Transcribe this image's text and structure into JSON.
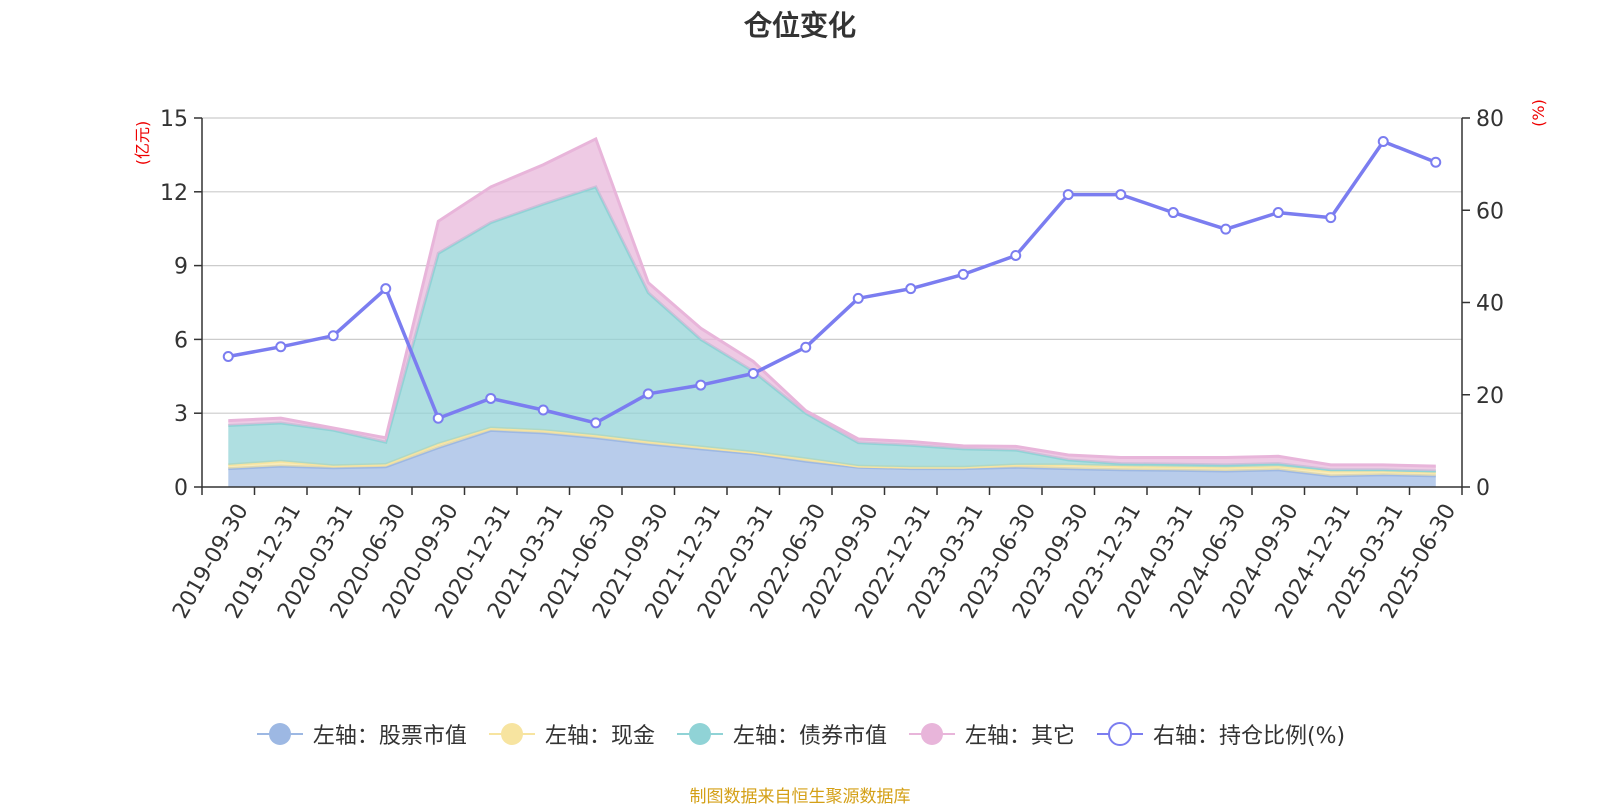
{
  "chart_data": {
    "type": "area",
    "title": "仓位变化",
    "ylabel": "(亿元)",
    "ylabel_right": "(%)",
    "ylim": [
      0,
      15
    ],
    "ylim_right": [
      0,
      80
    ],
    "yticks": [
      "0",
      "3",
      "6",
      "9",
      "12",
      "15"
    ],
    "yticks_right": [
      "0",
      "20",
      "40",
      "60",
      "80"
    ],
    "grid": true,
    "legend_position": "bottom",
    "categories": [
      "2019-09-30",
      "2019-12-31",
      "2020-03-31",
      "2020-06-30",
      "2020-09-30",
      "2020-12-31",
      "2021-03-31",
      "2021-06-30",
      "2021-09-30",
      "2021-12-31",
      "2022-03-31",
      "2022-06-30",
      "2022-09-30",
      "2022-12-31",
      "2023-03-31",
      "2023-06-30",
      "2023-09-30",
      "2023-12-31",
      "2024-03-31",
      "2024-06-30",
      "2024-09-30",
      "2024-12-31",
      "2025-03-31",
      "2025-06-30"
    ],
    "series": [
      {
        "name": "左轴：股票市值",
        "axis": "left",
        "kind": "stacked-area",
        "color": "#9db8e3",
        "values": [
          0.75,
          0.85,
          0.78,
          0.82,
          1.6,
          2.3,
          2.2,
          2.0,
          1.75,
          1.55,
          1.35,
          1.05,
          0.8,
          0.75,
          0.75,
          0.8,
          0.75,
          0.7,
          0.68,
          0.65,
          0.7,
          0.45,
          0.5,
          0.45
        ]
      },
      {
        "name": "左轴：现金",
        "axis": "left",
        "kind": "stacked-area",
        "color": "#f7e4a0",
        "values": [
          0.15,
          0.2,
          0.08,
          0.1,
          0.15,
          0.1,
          0.1,
          0.1,
          0.1,
          0.08,
          0.07,
          0.1,
          0.05,
          0.05,
          0.05,
          0.1,
          0.15,
          0.15,
          0.15,
          0.15,
          0.15,
          0.2,
          0.15,
          0.15
        ]
      },
      {
        "name": "左轴：债券市值",
        "axis": "left",
        "kind": "stacked-area",
        "color": "#90d3d6",
        "values": [
          1.6,
          1.55,
          1.45,
          0.9,
          7.75,
          8.35,
          9.2,
          10.1,
          6.05,
          4.37,
          3.28,
          1.85,
          0.95,
          0.9,
          0.75,
          0.6,
          0.2,
          0.1,
          0.1,
          0.1,
          0.1,
          0.05,
          0.05,
          0.05
        ]
      },
      {
        "name": "左轴：其它",
        "axis": "left",
        "kind": "stacked-area",
        "color": "#e8b5da",
        "values": [
          0.2,
          0.2,
          0.09,
          0.18,
          1.3,
          1.45,
          1.6,
          1.95,
          0.4,
          0.45,
          0.4,
          0.1,
          0.15,
          0.15,
          0.12,
          0.15,
          0.2,
          0.25,
          0.27,
          0.3,
          0.3,
          0.2,
          0.2,
          0.2
        ]
      },
      {
        "name": "右轴：持仓比例(%)",
        "axis": "right",
        "kind": "line",
        "color": "#7b7df0",
        "values": [
          28.3,
          30.4,
          32.8,
          43.0,
          14.9,
          19.2,
          16.7,
          13.9,
          20.2,
          22.1,
          24.6,
          30.3,
          40.9,
          43.0,
          46.1,
          50.2,
          63.4,
          63.4,
          59.5,
          55.9,
          59.5,
          58.4,
          74.9,
          70.4
        ]
      }
    ]
  },
  "source_text": "制图数据来自恒生聚源数据库"
}
